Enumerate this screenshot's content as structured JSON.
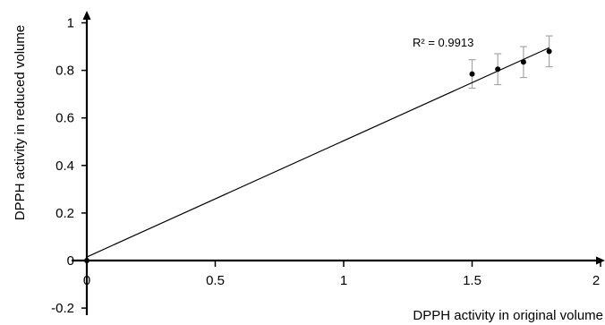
{
  "chart_data": {
    "type": "scatter",
    "xlabel": "DPPH activity in original volume",
    "ylabel": "DPPH activity in reduced volume",
    "xlim": [
      0,
      2
    ],
    "ylim": [
      -0.2,
      1
    ],
    "x_ticks": [
      {
        "value": 0,
        "label": "0"
      },
      {
        "value": 0.5,
        "label": "0.5"
      },
      {
        "value": 1,
        "label": "1"
      },
      {
        "value": 1.5,
        "label": "1.5"
      },
      {
        "value": 2,
        "label": "2"
      }
    ],
    "y_ticks": [
      {
        "value": -0.2,
        "label": "-0.2"
      },
      {
        "value": 0,
        "label": "0"
      },
      {
        "value": 0.2,
        "label": "0.2"
      },
      {
        "value": 0.4,
        "label": "0.4"
      },
      {
        "value": 0.6,
        "label": "0.6"
      },
      {
        "value": 0.8,
        "label": "0.8"
      },
      {
        "value": 1,
        "label": "1"
      }
    ],
    "points": [
      {
        "x": 0,
        "y": 0,
        "err": 0
      },
      {
        "x": 1.5,
        "y": 0.785,
        "err": 0.06
      },
      {
        "x": 1.6,
        "y": 0.805,
        "err": 0.065
      },
      {
        "x": 1.7,
        "y": 0.835,
        "err": 0.065
      },
      {
        "x": 1.8,
        "y": 0.88,
        "err": 0.065
      }
    ],
    "trendline": {
      "x0": 0,
      "y0": 0.015,
      "x1": 1.8,
      "y1": 0.895
    },
    "annotation": "R² = 0.9913",
    "grid": false,
    "colors": {
      "axis": "#000000",
      "marker": "#000000",
      "trendline": "#000000",
      "error_bar": "#a6a6a6"
    }
  }
}
